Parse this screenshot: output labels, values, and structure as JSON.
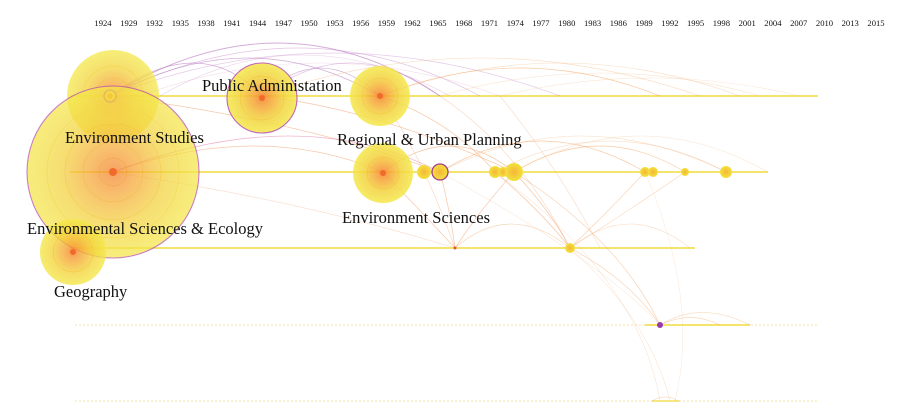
{
  "diagram": {
    "type": "timeline-cluster-network",
    "years": [
      "1924",
      "1929",
      "1932",
      "1935",
      "1938",
      "1941",
      "1944",
      "1947",
      "1950",
      "1953",
      "1956",
      "1959",
      "1962",
      "1965",
      "1968",
      "1971",
      "1974",
      "1977",
      "1980",
      "1983",
      "1986",
      "1989",
      "1992",
      "1995",
      "1998",
      "2001",
      "2004",
      "2007",
      "2010",
      "2013",
      "2015"
    ],
    "cluster_labels": [
      "Public Administation",
      "Environment Studies",
      "Regional & Urban Planning",
      "Environment Sciences",
      "Environmental Sciences & Ecology",
      "Geography"
    ],
    "colors": {
      "node_outer": "#f2e23c",
      "node_inner": "#f6a234",
      "node_ring": "#b54cae",
      "timeline": "#f1dc3a",
      "link_orange": "#f2a05a",
      "link_purple": "#b06ab8"
    }
  }
}
